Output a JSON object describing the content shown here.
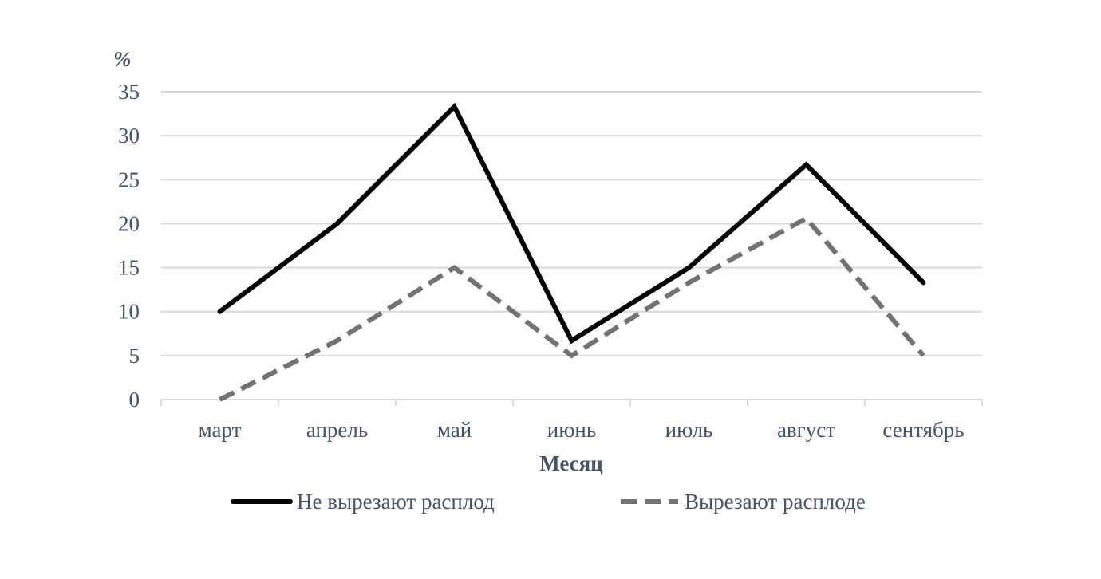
{
  "chart_data": {
    "type": "line",
    "categories": [
      "март",
      "апрель",
      "май",
      "июнь",
      "июль",
      "август",
      "сентябрь"
    ],
    "series": [
      {
        "name": "Не вырезают расплод",
        "values": [
          10,
          20,
          33.3,
          6.7,
          15,
          26.7,
          13.3
        ],
        "color": "#000000",
        "dashed": false
      },
      {
        "name": "Вырезают расплоде",
        "values": [
          0,
          6.7,
          15,
          5,
          13.3,
          20.6,
          5
        ],
        "color": "#767171",
        "dashed": true
      }
    ],
    "ylabel": "%",
    "xlabel": "Месяц",
    "ylim": [
      0,
      35
    ],
    "yticks": [
      "0",
      "5",
      "10",
      "15",
      "20",
      "25",
      "30",
      "35"
    ],
    "grid": true,
    "legend_position": "bottom",
    "colors": {
      "grid": "#d9d9d9",
      "axis": "#d9d9d9",
      "text": "#44546a"
    }
  }
}
